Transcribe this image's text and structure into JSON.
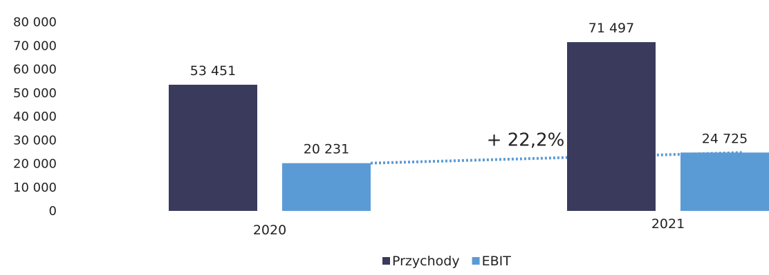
{
  "chart_data": {
    "type": "bar",
    "categories": [
      "2020",
      "2021"
    ],
    "series": [
      {
        "name": "Przychody",
        "values": [
          53451,
          71497
        ],
        "labels": [
          "53 451",
          "71 497"
        ],
        "color": "#393a5c"
      },
      {
        "name": "EBIT",
        "values": [
          20231,
          24725
        ],
        "labels": [
          "20 231",
          "24 725"
        ],
        "color": "#5b9bd5"
      }
    ],
    "ylim": [
      0,
      80000
    ],
    "yticks": [
      0,
      10000,
      20000,
      30000,
      40000,
      50000,
      60000,
      70000,
      80000
    ],
    "ytick_labels": [
      "0",
      "10 000",
      "20 000",
      "30 000",
      "40 000",
      "50 000",
      "60 000",
      "70 000",
      "80 000"
    ],
    "annotation": {
      "text": "+ 22,2%",
      "connects_series": "EBIT",
      "style": "dotted trend line"
    },
    "trend_color": "#5b9bd5",
    "grid": false,
    "legend_position": "bottom"
  }
}
